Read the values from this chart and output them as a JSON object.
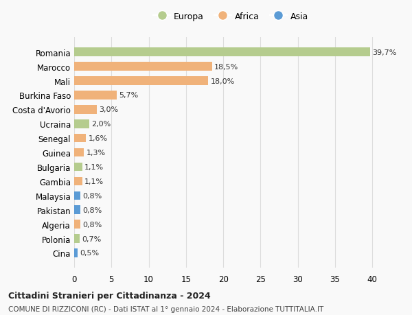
{
  "categories": [
    "Romania",
    "Marocco",
    "Mali",
    "Burkina Faso",
    "Costa d'Avorio",
    "Ucraina",
    "Senegal",
    "Guinea",
    "Bulgaria",
    "Gambia",
    "Malaysia",
    "Pakistan",
    "Algeria",
    "Polonia",
    "Cina"
  ],
  "values": [
    39.7,
    18.5,
    18.0,
    5.7,
    3.0,
    2.0,
    1.6,
    1.3,
    1.1,
    1.1,
    0.8,
    0.8,
    0.8,
    0.7,
    0.5
  ],
  "labels": [
    "39,7%",
    "18,5%",
    "18,0%",
    "5,7%",
    "3,0%",
    "2,0%",
    "1,6%",
    "1,3%",
    "1,1%",
    "1,1%",
    "0,8%",
    "0,8%",
    "0,8%",
    "0,7%",
    "0,5%"
  ],
  "continents": [
    "Europa",
    "Africa",
    "Africa",
    "Africa",
    "Africa",
    "Europa",
    "Africa",
    "Africa",
    "Europa",
    "Africa",
    "Asia",
    "Asia",
    "Africa",
    "Europa",
    "Asia"
  ],
  "colors": {
    "Europa": "#b5cc8e",
    "Africa": "#f0b27a",
    "Asia": "#5b9bd5"
  },
  "legend_order": [
    "Europa",
    "Africa",
    "Asia"
  ],
  "title": "Cittadini Stranieri per Cittadinanza - 2024",
  "subtitle": "COMUNE DI RIZZICONI (RC) - Dati ISTAT al 1° gennaio 2024 - Elaborazione TUTTITALIA.IT",
  "xlim": [
    0,
    42
  ],
  "xticks": [
    0,
    5,
    10,
    15,
    20,
    25,
    30,
    35,
    40
  ],
  "background_color": "#f9f9f9",
  "grid_color": "#dddddd"
}
